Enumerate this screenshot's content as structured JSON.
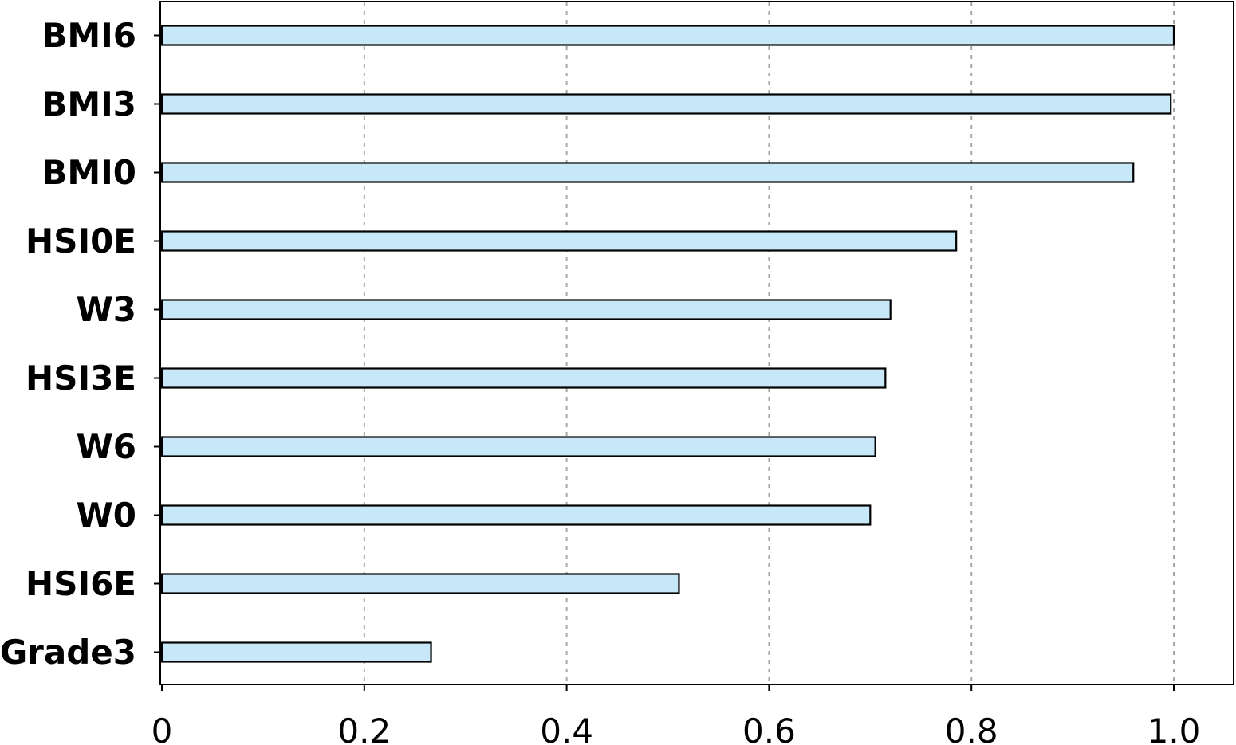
{
  "chart_data": {
    "type": "bar",
    "orientation": "horizontal",
    "categories": [
      "BMI6",
      "BMI3",
      "BMI0",
      "HSI0E",
      "W3",
      "HSI3E",
      "W6",
      "W0",
      "HSI6E",
      "Grade3"
    ],
    "values": [
      1.0,
      0.997,
      0.96,
      0.785,
      0.72,
      0.715,
      0.705,
      0.7,
      0.511,
      0.266
    ],
    "xlim": [
      0,
      1.07
    ],
    "xticks": [
      0,
      0.2,
      0.4,
      0.6,
      0.8,
      1.0
    ],
    "xtick_labels": [
      "0",
      "0.2",
      "0.4",
      "0.6",
      "0.8",
      "1.0"
    ],
    "title": "",
    "xlabel": "",
    "ylabel": "",
    "grid": "vertical dashed",
    "legend": "none"
  },
  "colors": {
    "bar_fill": "#c6e8f9",
    "bar_edge": "#000000",
    "grid": "#a6a6a6"
  }
}
